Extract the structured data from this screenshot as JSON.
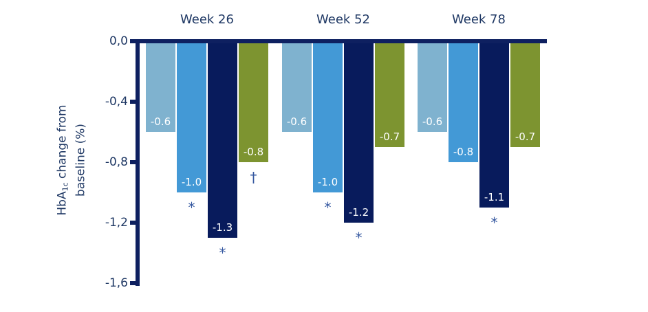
{
  "chart_data": {
    "type": "bar",
    "title": "",
    "orientation": "vertical-negative",
    "ylabel": {
      "prefix": "HbA",
      "sub": "1c",
      "line1_rest": " change from",
      "line2": "baseline (%)"
    },
    "y_axis": {
      "range": [
        0,
        -1.6
      ],
      "decimal_separator": ",",
      "ticks": [
        {
          "label": "0,0",
          "value": 0
        },
        {
          "label": "-0,4",
          "value": -0.4
        },
        {
          "label": "-0,8",
          "value": -0.8
        },
        {
          "label": "-1,2",
          "value": -1.2
        },
        {
          "label": "-1,6",
          "value": -1.6
        }
      ]
    },
    "categories": [
      "Week 26",
      "Week 52",
      "Week 78"
    ],
    "series": [
      {
        "name": "light-blue-series",
        "color": "#7FB2CF",
        "values": [
          -0.6,
          -0.6,
          -0.6
        ],
        "labels": [
          "-0.6",
          "-0.6",
          "-0.6"
        ],
        "markers": [
          "",
          "",
          ""
        ]
      },
      {
        "name": "medium-blue-series",
        "color": "#4399D6",
        "values": [
          -1.0,
          -1.0,
          -0.8
        ],
        "labels": [
          "-1.0",
          "-1.0",
          "-0.8"
        ],
        "markers": [
          "*",
          "*",
          ""
        ]
      },
      {
        "name": "dark-navy-series",
        "color": "#081B5C",
        "values": [
          -1.3,
          -1.2,
          -1.1
        ],
        "labels": [
          "-1.3",
          "-1.2",
          "-1.1"
        ],
        "markers": [
          "*",
          "*",
          "*"
        ]
      },
      {
        "name": "olive-green-series",
        "color": "#7D9430",
        "values": [
          -0.8,
          -0.7,
          -0.7
        ],
        "labels": [
          "-0.8",
          "-0.7",
          "-0.7"
        ],
        "markers": [
          "†",
          "",
          ""
        ]
      }
    ],
    "colors": {
      "axis": "#0E2060",
      "text": "#1F3864",
      "marker_symbol": "#3558A0",
      "value_label": "#FFFFFF"
    },
    "legend": "none",
    "grid": false
  }
}
